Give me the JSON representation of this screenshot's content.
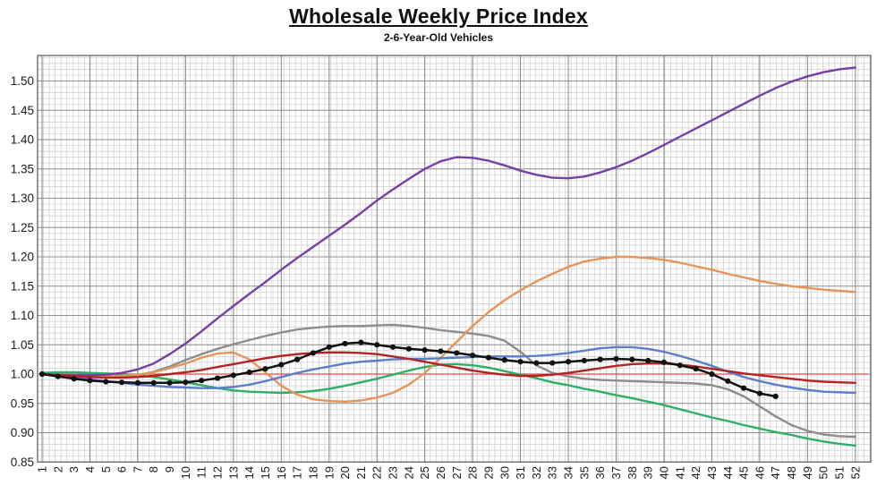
{
  "title": "Wholesale Weekly Price Index",
  "subtitle": "2-6-Year-Old Vehicles",
  "chart_data": {
    "type": "line",
    "title": "Wholesale Weekly Price Index",
    "subtitle": "2-6-Year-Old Vehicles",
    "xlabel": "",
    "ylabel": "",
    "x": [
      1,
      2,
      3,
      4,
      5,
      6,
      7,
      8,
      9,
      10,
      11,
      12,
      13,
      14,
      15,
      16,
      17,
      18,
      19,
      20,
      21,
      22,
      23,
      24,
      25,
      26,
      27,
      28,
      29,
      30,
      31,
      32,
      33,
      34,
      35,
      36,
      37,
      38,
      39,
      40,
      41,
      42,
      43,
      44,
      45,
      46,
      47,
      48,
      49,
      50,
      51,
      52
    ],
    "ylim": [
      0.85,
      1.545
    ],
    "yticks": [
      1.5,
      1.45,
      1.4,
      1.35,
      1.3,
      1.25,
      1.2,
      1.15,
      1.1,
      1.05,
      1.0,
      0.95,
      0.9,
      0.85
    ],
    "grid": "fine graph-paper grid, darker major lines",
    "legend_position": "none",
    "reference_line": {
      "name": "index-baseline",
      "value": 1.0,
      "color": "#ee4444"
    },
    "series": [
      {
        "name": "purple-line",
        "color": "#7440a4",
        "width": 2.4,
        "values": [
          1.0,
          0.999,
          0.998,
          0.998,
          0.999,
          1.002,
          1.008,
          1.018,
          1.034,
          1.052,
          1.073,
          1.095,
          1.116,
          1.137,
          1.157,
          1.178,
          1.198,
          1.217,
          1.236,
          1.255,
          1.275,
          1.296,
          1.315,
          1.333,
          1.35,
          1.363,
          1.37,
          1.369,
          1.364,
          1.356,
          1.347,
          1.34,
          1.335,
          1.334,
          1.337,
          1.344,
          1.353,
          1.364,
          1.377,
          1.391,
          1.405,
          1.419,
          1.433,
          1.447,
          1.461,
          1.475,
          1.488,
          1.499,
          1.508,
          1.515,
          1.52,
          1.523
        ]
      },
      {
        "name": "orange-line",
        "color": "#e6955a",
        "width": 2.4,
        "values": [
          1.0,
          0.998,
          0.997,
          0.996,
          0.996,
          0.997,
          0.999,
          1.003,
          1.01,
          1.018,
          1.028,
          1.035,
          1.037,
          1.025,
          1.003,
          0.98,
          0.965,
          0.957,
          0.954,
          0.953,
          0.955,
          0.96,
          0.968,
          0.982,
          1.002,
          1.028,
          1.055,
          1.082,
          1.106,
          1.126,
          1.143,
          1.158,
          1.171,
          1.183,
          1.192,
          1.197,
          1.2,
          1.2,
          1.198,
          1.195,
          1.19,
          1.184,
          1.178,
          1.171,
          1.165,
          1.159,
          1.154,
          1.15,
          1.147,
          1.144,
          1.142,
          1.14
        ]
      },
      {
        "name": "gray-line",
        "color": "#8c8c8c",
        "width": 2.4,
        "values": [
          1.0,
          0.998,
          0.996,
          0.995,
          0.994,
          0.995,
          0.998,
          1.004,
          1.013,
          1.024,
          1.034,
          1.043,
          1.051,
          1.058,
          1.065,
          1.071,
          1.076,
          1.079,
          1.081,
          1.082,
          1.082,
          1.083,
          1.084,
          1.082,
          1.079,
          1.075,
          1.072,
          1.069,
          1.065,
          1.057,
          1.038,
          1.015,
          1.002,
          0.996,
          0.992,
          0.99,
          0.989,
          0.988,
          0.987,
          0.986,
          0.985,
          0.984,
          0.981,
          0.974,
          0.962,
          0.945,
          0.928,
          0.913,
          0.903,
          0.897,
          0.894,
          0.893
        ]
      },
      {
        "name": "blue-line",
        "color": "#5b7ec9",
        "width": 2.4,
        "values": [
          1.0,
          0.997,
          0.994,
          0.991,
          0.988,
          0.985,
          0.982,
          0.98,
          0.978,
          0.977,
          0.976,
          0.976,
          0.978,
          0.982,
          0.988,
          0.995,
          1.002,
          1.008,
          1.013,
          1.018,
          1.021,
          1.023,
          1.025,
          1.026,
          1.026,
          1.027,
          1.028,
          1.029,
          1.03,
          1.03,
          1.03,
          1.031,
          1.033,
          1.036,
          1.04,
          1.044,
          1.046,
          1.046,
          1.043,
          1.038,
          1.031,
          1.023,
          1.014,
          1.004,
          0.995,
          0.988,
          0.982,
          0.977,
          0.973,
          0.97,
          0.969,
          0.968
        ]
      },
      {
        "name": "red-line",
        "color": "#b42222",
        "width": 2.4,
        "values": [
          1.0,
          0.998,
          0.996,
          0.995,
          0.994,
          0.994,
          0.995,
          0.997,
          1.0,
          1.003,
          1.007,
          1.012,
          1.017,
          1.022,
          1.027,
          1.031,
          1.034,
          1.036,
          1.037,
          1.037,
          1.036,
          1.034,
          1.03,
          1.026,
          1.021,
          1.016,
          1.011,
          1.006,
          1.002,
          0.999,
          0.997,
          0.997,
          0.999,
          1.002,
          1.006,
          1.01,
          1.014,
          1.017,
          1.018,
          1.018,
          1.016,
          1.013,
          1.009,
          1.005,
          1.001,
          0.998,
          0.995,
          0.992,
          0.989,
          0.987,
          0.986,
          0.985
        ]
      },
      {
        "name": "green-line",
        "color": "#2fae66",
        "width": 2.4,
        "values": [
          1.002,
          1.003,
          1.003,
          1.002,
          1.001,
          1.0,
          0.998,
          0.995,
          0.991,
          0.986,
          0.981,
          0.976,
          0.972,
          0.97,
          0.969,
          0.968,
          0.969,
          0.971,
          0.975,
          0.98,
          0.986,
          0.992,
          0.999,
          1.006,
          1.012,
          1.016,
          1.017,
          1.015,
          1.011,
          1.005,
          0.999,
          0.993,
          0.986,
          0.981,
          0.975,
          0.97,
          0.964,
          0.959,
          0.953,
          0.947,
          0.94,
          0.933,
          0.926,
          0.92,
          0.913,
          0.907,
          0.901,
          0.896,
          0.89,
          0.885,
          0.881,
          0.878
        ]
      },
      {
        "name": "black-dotted-line",
        "color": "#111111",
        "width": 2.5,
        "markers": true,
        "values": [
          1.0,
          0.996,
          0.992,
          0.989,
          0.987,
          0.986,
          0.985,
          0.985,
          0.985,
          0.986,
          0.989,
          0.993,
          0.998,
          1.003,
          1.009,
          1.016,
          1.025,
          1.036,
          1.046,
          1.052,
          1.054,
          1.05,
          1.046,
          1.043,
          1.041,
          1.039,
          1.036,
          1.032,
          1.028,
          1.024,
          1.021,
          1.019,
          1.019,
          1.021,
          1.023,
          1.025,
          1.026,
          1.025,
          1.023,
          1.02,
          1.015,
          1.009,
          1.0,
          0.988,
          0.976,
          0.967,
          0.962
        ]
      }
    ]
  }
}
